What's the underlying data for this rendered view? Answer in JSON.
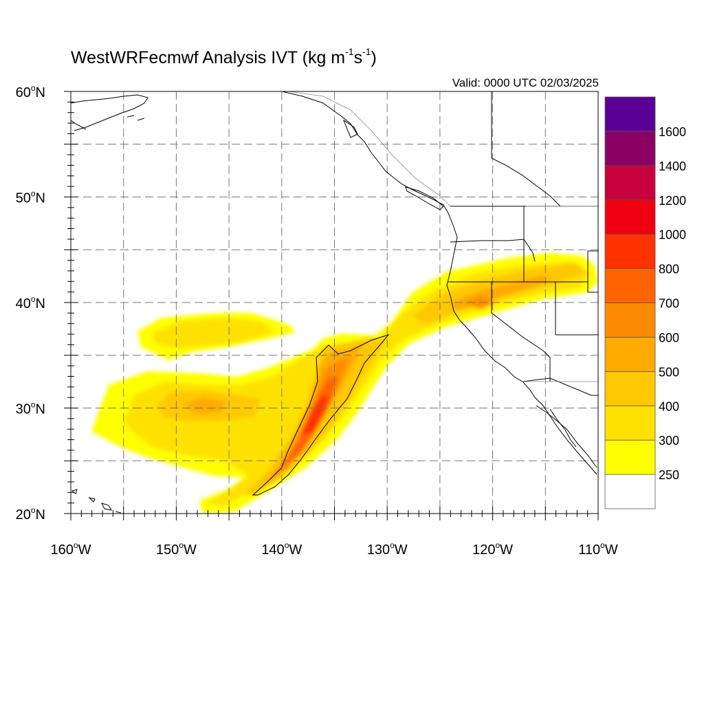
{
  "title": {
    "prefix": "WestWRFecmwf Analysis IVT (kg m",
    "exp1": "-1",
    "mid": "s",
    "exp2": "-1",
    "suffix": ")"
  },
  "valid_text": "Valid: 0000 UTC 02/03/2025",
  "map": {
    "lon_range": [
      -160,
      -110
    ],
    "lat_range": [
      20,
      60
    ],
    "gridlines_lon": [
      -155,
      -150,
      -145,
      -140,
      -135,
      -130,
      -125,
      -120,
      -115
    ],
    "gridlines_lat": [
      25,
      30,
      35,
      40,
      45,
      50,
      55
    ],
    "lat_labels": [
      {
        "lat": 60,
        "num": "60",
        "deg": "o",
        "hem": "N"
      },
      {
        "lat": 50,
        "num": "50",
        "deg": "o",
        "hem": "N"
      },
      {
        "lat": 40,
        "num": "40",
        "deg": "o",
        "hem": "N"
      },
      {
        "lat": 30,
        "num": "30",
        "deg": "o",
        "hem": "N"
      },
      {
        "lat": 20,
        "num": "20",
        "deg": "o",
        "hem": "N"
      }
    ],
    "lon_labels": [
      {
        "lon": -160,
        "num": "160",
        "deg": "o",
        "hem": "W"
      },
      {
        "lon": -150,
        "num": "150",
        "deg": "o",
        "hem": "W"
      },
      {
        "lon": -140,
        "num": "140",
        "deg": "o",
        "hem": "W"
      },
      {
        "lon": -130,
        "num": "130",
        "deg": "o",
        "hem": "W"
      },
      {
        "lon": -120,
        "num": "120",
        "deg": "o",
        "hem": "W"
      },
      {
        "lon": -110,
        "num": "110",
        "deg": "o",
        "hem": "W"
      }
    ]
  },
  "colorbar": {
    "levels": [
      250,
      300,
      400,
      500,
      600,
      700,
      800,
      1000,
      1200,
      1400,
      1600
    ],
    "colors": [
      "#ffffff",
      "#ffff00",
      "#ffe100",
      "#ffc800",
      "#ffaa00",
      "#ff8c00",
      "#ff6400",
      "#ff3200",
      "#f00010",
      "#c8003c",
      "#8c0064",
      "#5a0096"
    ],
    "labels": [
      "250",
      "300",
      "400",
      "500",
      "600",
      "700",
      "800",
      "1000",
      "1200",
      "1400",
      "1600"
    ]
  },
  "chart_data": {
    "type": "heatmap",
    "variable": "IVT",
    "units": "kg m-1 s-1",
    "analysis_time": "0000 UTC 02/03/2025",
    "features": [
      {
        "name": "atmospheric river core",
        "max_ivt_approx": 800,
        "center_lat": 29,
        "center_lon": -136.5
      },
      {
        "name": "landfall northern California",
        "ivt_approx": 500,
        "lat": 39.5,
        "lon": -123
      },
      {
        "name": "subtropical moisture plume",
        "ivt_approx": 400,
        "lat": 30,
        "lon": -148
      }
    ]
  }
}
